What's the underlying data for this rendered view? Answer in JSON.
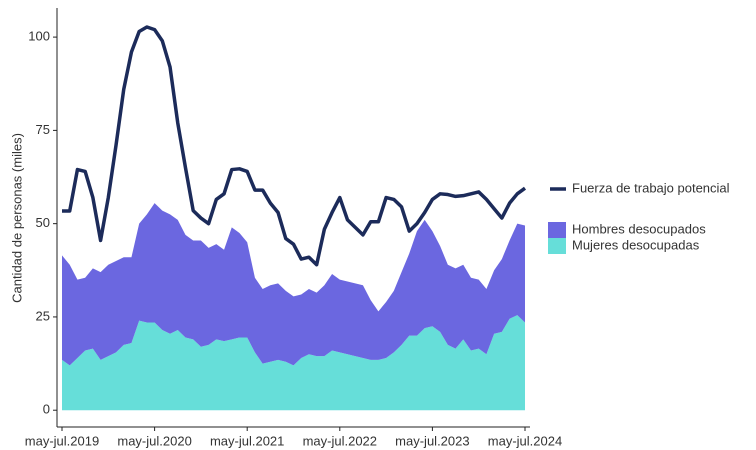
{
  "chart_data": {
    "type": "stacked_area",
    "y_label": "Cantidad de personas (miles)",
    "categories": [
      "may-jul.2019",
      null,
      null,
      null,
      null,
      null,
      null,
      null,
      null,
      null,
      null,
      null,
      "may-jul.2020",
      null,
      null,
      null,
      null,
      null,
      null,
      null,
      null,
      null,
      null,
      null,
      "may-jul.2021",
      null,
      null,
      null,
      null,
      null,
      null,
      null,
      null,
      null,
      null,
      null,
      "may-jul.2022",
      null,
      null,
      null,
      null,
      null,
      null,
      null,
      null,
      null,
      null,
      null,
      "may-jul.2023",
      null,
      null,
      null,
      null,
      null,
      null,
      null,
      null,
      null,
      null,
      null,
      "may-jul.2024"
    ],
    "ylim": [
      -4.5,
      107.8
    ],
    "yticks": [
      0,
      25,
      50,
      75,
      100
    ],
    "grid": false,
    "legend": "right",
    "series": [
      {
        "name": "Mujeres desocupadas",
        "color": "#66ded9",
        "type": "area",
        "values": [
          13.5,
          12,
          14,
          16,
          16.5,
          13.5,
          14.5,
          15.5,
          17.5,
          18,
          24,
          23.5,
          23.5,
          21.5,
          20.5,
          21.5,
          19.5,
          19,
          17,
          17.5,
          19,
          18.5,
          19,
          19.5,
          19.5,
          15.5,
          12.5,
          13,
          13.5,
          13,
          12,
          14,
          15,
          14.5,
          14.5,
          16,
          15.5,
          15,
          14.5,
          14,
          13.5,
          13.5,
          14,
          15.5,
          17.5,
          20,
          20,
          22,
          22.5,
          21,
          17.5,
          16.5,
          19,
          16,
          16.5,
          15,
          20.5,
          21,
          24.5,
          25.5,
          23.5
        ]
      },
      {
        "name": "Hombres desocupados",
        "color": "#6b67e0",
        "type": "area",
        "values": [
          28,
          27,
          21,
          19.5,
          21.5,
          23.5,
          24.5,
          24.5,
          23.5,
          23,
          26,
          29,
          32,
          32,
          32,
          29.5,
          27.5,
          26.5,
          28.5,
          26,
          25.5,
          24.5,
          30,
          28,
          25.5,
          20,
          20,
          20.5,
          20.5,
          19,
          18.5,
          17,
          17.5,
          17,
          19,
          20.5,
          19.5,
          19.5,
          19.5,
          19.5,
          16,
          13,
          15,
          16.5,
          19.5,
          22,
          28,
          29,
          25.5,
          23,
          21.5,
          21.5,
          20,
          19.5,
          18.5,
          17.5,
          17,
          19.5,
          21,
          24.5,
          26
        ]
      },
      {
        "name": "Fuerza de trabajo potencial",
        "color": "#1c2b5a",
        "type": "line",
        "values": [
          53.4,
          53.4,
          64.5,
          64,
          57,
          45.5,
          57,
          71,
          86,
          96,
          101.5,
          102.7,
          102,
          99,
          92,
          77,
          65,
          53.5,
          51.5,
          50,
          56.5,
          58,
          64.5,
          64.7,
          64,
          59,
          59,
          55.5,
          53,
          46,
          44.5,
          40.5,
          41,
          39,
          48.5,
          53,
          57,
          51,
          49,
          47,
          50.5,
          50.5,
          57,
          56.5,
          54.5,
          48,
          50,
          53,
          56.5,
          58,
          57.8,
          57.3,
          57.5,
          58,
          58.5,
          56.5,
          54,
          51.5,
          55.5,
          58,
          59.5
        ]
      }
    ]
  }
}
